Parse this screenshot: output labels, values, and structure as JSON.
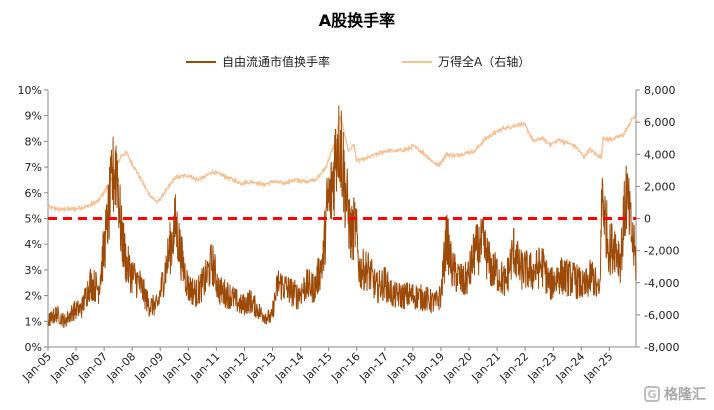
{
  "chart_data": {
    "type": "line",
    "title": "A股换手率",
    "legend": [
      "自由流通市值换手率",
      "万得全A（右轴）"
    ],
    "legend_position": "top-center",
    "grid": false,
    "y_left": {
      "label": "",
      "min": 0,
      "max": 10,
      "ticks": [
        "0%",
        "1%",
        "2%",
        "3%",
        "4%",
        "5%",
        "6%",
        "7%",
        "8%",
        "9%",
        "10%"
      ]
    },
    "y_right": {
      "label": "",
      "min": -8000,
      "max": 8000,
      "ticks": [
        "-8,000",
        "-6,000",
        "-4,000",
        "-2,000",
        "0",
        "2,000",
        "4,000",
        "6,000",
        "8,000"
      ]
    },
    "x_ticks": [
      "Jan-05",
      "Jan-06",
      "Jan-07",
      "Jan-08",
      "Jan-09",
      "Jan-10",
      "Jan-11",
      "Jan-12",
      "Jan-13",
      "Jan-14",
      "Jan-15",
      "Jan-16",
      "Jan-17",
      "Jan-18",
      "Jan-19",
      "Jan-20",
      "Jan-21",
      "Jan-22",
      "Jan-23",
      "Jan-24",
      "Jan-25"
    ],
    "x_range": [
      2005.0,
      2025.95
    ],
    "reference_line": {
      "axis": "left",
      "value": 5,
      "color": "#ff0000",
      "style": "dashed"
    },
    "series": [
      {
        "name": "自由流通市值换手率",
        "axis": "left",
        "color": "#9c4a06",
        "points": [
          [
            2005.0,
            1.0
          ],
          [
            2005.3,
            1.3
          ],
          [
            2005.6,
            1.0
          ],
          [
            2005.9,
            1.4
          ],
          [
            2006.2,
            1.5
          ],
          [
            2006.5,
            2.5
          ],
          [
            2006.8,
            2.3
          ],
          [
            2007.0,
            3.8
          ],
          [
            2007.2,
            5.6
          ],
          [
            2007.35,
            6.8
          ],
          [
            2007.45,
            7.2
          ],
          [
            2007.6,
            4.5
          ],
          [
            2007.8,
            3.2
          ],
          [
            2008.0,
            2.8
          ],
          [
            2008.3,
            2.4
          ],
          [
            2008.6,
            1.6
          ],
          [
            2008.9,
            1.6
          ],
          [
            2009.1,
            2.6
          ],
          [
            2009.3,
            3.6
          ],
          [
            2009.55,
            4.8
          ],
          [
            2009.75,
            3.5
          ],
          [
            2010.0,
            2.3
          ],
          [
            2010.3,
            2.1
          ],
          [
            2010.6,
            2.6
          ],
          [
            2010.85,
            3.3
          ],
          [
            2011.1,
            2.2
          ],
          [
            2011.5,
            2.0
          ],
          [
            2011.9,
            1.6
          ],
          [
            2012.2,
            1.8
          ],
          [
            2012.6,
            1.3
          ],
          [
            2012.95,
            1.1
          ],
          [
            2013.2,
            2.5
          ],
          [
            2013.6,
            2.2
          ],
          [
            2013.9,
            2.0
          ],
          [
            2014.2,
            2.4
          ],
          [
            2014.5,
            2.3
          ],
          [
            2014.8,
            3.4
          ],
          [
            2014.95,
            5.5
          ],
          [
            2015.1,
            6.0
          ],
          [
            2015.35,
            8.5
          ],
          [
            2015.45,
            7.8
          ],
          [
            2015.6,
            6.0
          ],
          [
            2015.8,
            4.3
          ],
          [
            2015.95,
            4.8
          ],
          [
            2016.1,
            3.0
          ],
          [
            2016.4,
            3.0
          ],
          [
            2016.7,
            2.3
          ],
          [
            2017.0,
            2.5
          ],
          [
            2017.3,
            2.0
          ],
          [
            2017.7,
            2.0
          ],
          [
            2018.0,
            2.0
          ],
          [
            2018.4,
            1.9
          ],
          [
            2018.8,
            1.7
          ],
          [
            2019.0,
            2.0
          ],
          [
            2019.2,
            4.3
          ],
          [
            2019.4,
            3.0
          ],
          [
            2019.8,
            2.5
          ],
          [
            2020.0,
            2.8
          ],
          [
            2020.2,
            3.7
          ],
          [
            2020.5,
            4.0
          ],
          [
            2020.8,
            3.0
          ],
          [
            2021.0,
            2.9
          ],
          [
            2021.3,
            2.5
          ],
          [
            2021.6,
            3.8
          ],
          [
            2021.8,
            3.0
          ],
          [
            2022.0,
            3.0
          ],
          [
            2022.3,
            2.9
          ],
          [
            2022.6,
            3.2
          ],
          [
            2022.9,
            2.4
          ],
          [
            2023.2,
            2.8
          ],
          [
            2023.5,
            2.7
          ],
          [
            2023.8,
            2.6
          ],
          [
            2024.1,
            2.3
          ],
          [
            2024.4,
            2.8
          ],
          [
            2024.65,
            2.0
          ],
          [
            2024.75,
            6.2
          ],
          [
            2024.85,
            5.0
          ],
          [
            2025.0,
            3.8
          ],
          [
            2025.2,
            4.0
          ],
          [
            2025.4,
            3.4
          ],
          [
            2025.6,
            6.0
          ],
          [
            2025.8,
            4.3
          ],
          [
            2025.95,
            3.3
          ]
        ]
      },
      {
        "name": "万得全A（右轴）",
        "axis": "right",
        "color": "#f5c193",
        "points": [
          [
            2005.0,
            700
          ],
          [
            2005.5,
            550
          ],
          [
            2006.0,
            620
          ],
          [
            2006.4,
            750
          ],
          [
            2006.8,
            1100
          ],
          [
            2007.0,
            1650
          ],
          [
            2007.3,
            2500
          ],
          [
            2007.6,
            3900
          ],
          [
            2007.8,
            4100
          ],
          [
            2008.0,
            3400
          ],
          [
            2008.3,
            2500
          ],
          [
            2008.6,
            1500
          ],
          [
            2008.9,
            1000
          ],
          [
            2009.2,
            1700
          ],
          [
            2009.5,
            2500
          ],
          [
            2009.7,
            2600
          ],
          [
            2010.0,
            2700
          ],
          [
            2010.3,
            2400
          ],
          [
            2010.6,
            2600
          ],
          [
            2010.85,
            2900
          ],
          [
            2011.2,
            2700
          ],
          [
            2011.6,
            2400
          ],
          [
            2011.9,
            2200
          ],
          [
            2012.3,
            2300
          ],
          [
            2012.7,
            2100
          ],
          [
            2013.0,
            2300
          ],
          [
            2013.4,
            2200
          ],
          [
            2013.8,
            2400
          ],
          [
            2014.2,
            2300
          ],
          [
            2014.6,
            2500
          ],
          [
            2014.9,
            3200
          ],
          [
            2015.2,
            4600
          ],
          [
            2015.4,
            6300
          ],
          [
            2015.5,
            5800
          ],
          [
            2015.7,
            4200
          ],
          [
            2015.9,
            4600
          ],
          [
            2016.0,
            3600
          ],
          [
            2016.3,
            3700
          ],
          [
            2016.7,
            4000
          ],
          [
            2017.0,
            4200
          ],
          [
            2017.4,
            4200
          ],
          [
            2017.8,
            4300
          ],
          [
            2018.0,
            4500
          ],
          [
            2018.3,
            4200
          ],
          [
            2018.6,
            3700
          ],
          [
            2018.9,
            3300
          ],
          [
            2019.2,
            4000
          ],
          [
            2019.5,
            3900
          ],
          [
            2019.9,
            4100
          ],
          [
            2020.2,
            4200
          ],
          [
            2020.6,
            5000
          ],
          [
            2020.9,
            5300
          ],
          [
            2021.2,
            5600
          ],
          [
            2021.5,
            5700
          ],
          [
            2021.8,
            5900
          ],
          [
            2022.0,
            5800
          ],
          [
            2022.3,
            4800
          ],
          [
            2022.6,
            5000
          ],
          [
            2022.9,
            4600
          ],
          [
            2023.2,
            4900
          ],
          [
            2023.5,
            4700
          ],
          [
            2023.8,
            4500
          ],
          [
            2024.1,
            3800
          ],
          [
            2024.3,
            4300
          ],
          [
            2024.6,
            3900
          ],
          [
            2024.72,
            3800
          ],
          [
            2024.78,
            5100
          ],
          [
            2024.9,
            4900
          ],
          [
            2025.2,
            5000
          ],
          [
            2025.5,
            5200
          ],
          [
            2025.7,
            5800
          ],
          [
            2025.85,
            6300
          ],
          [
            2025.95,
            6200
          ]
        ]
      }
    ]
  },
  "watermark": {
    "text": "格隆汇",
    "icon": "g-logo-icon"
  }
}
